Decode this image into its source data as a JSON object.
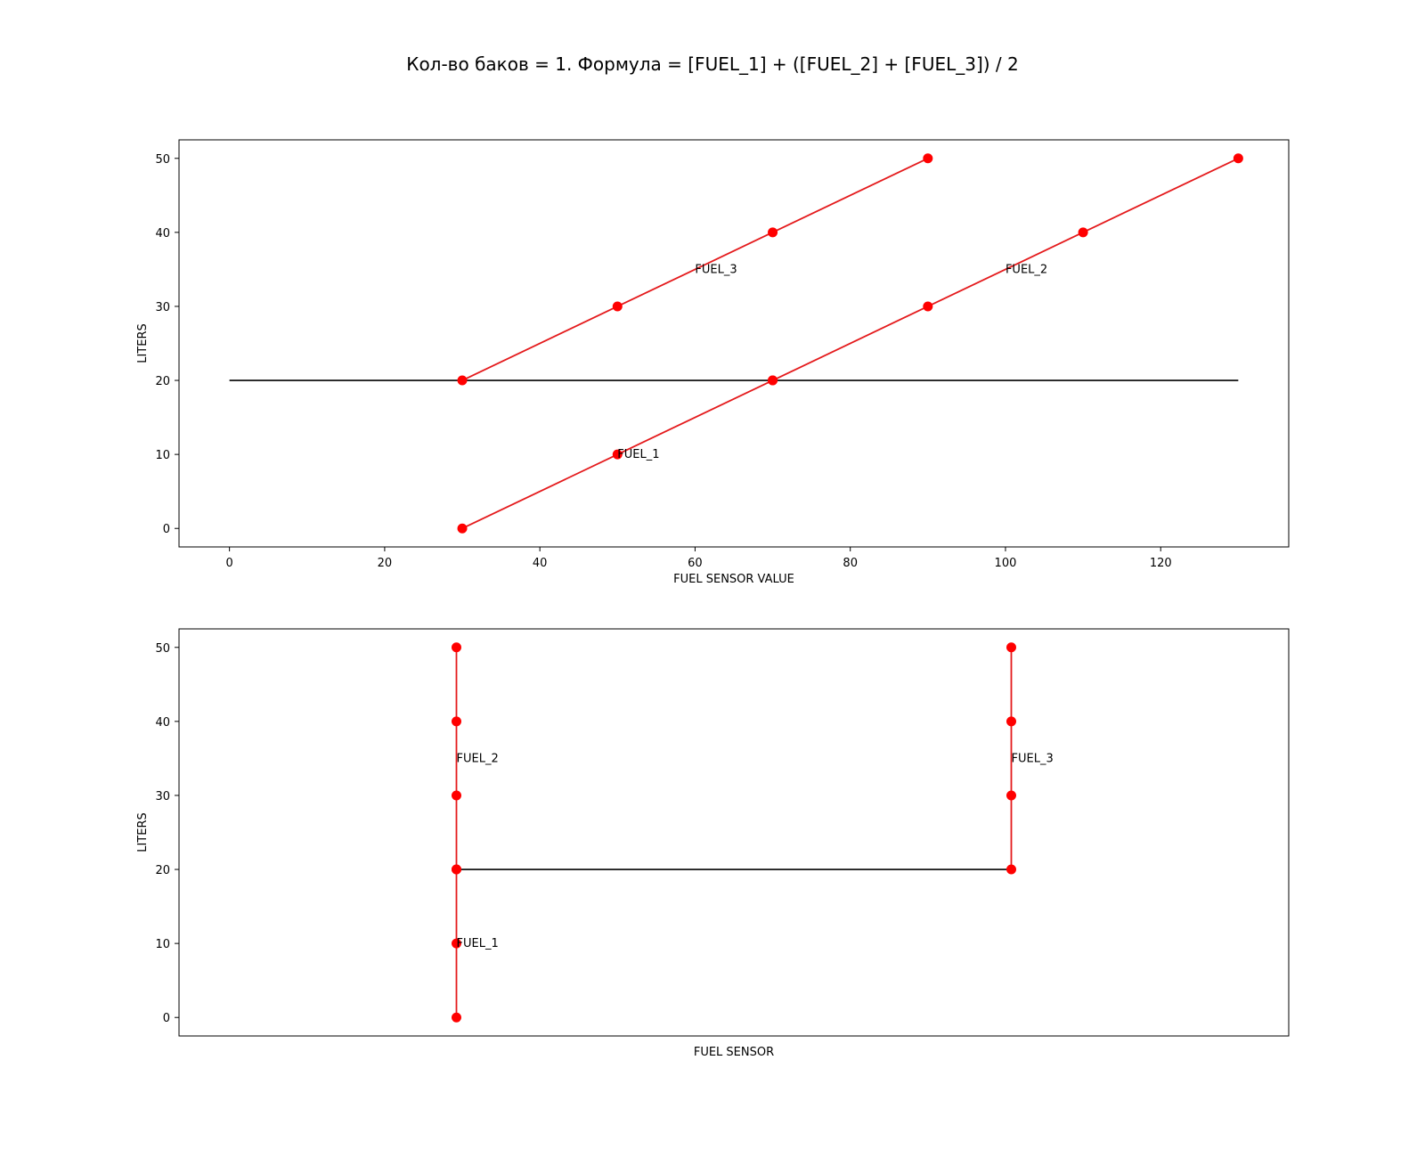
{
  "figure": {
    "suptitle": "Кол-во баков = 1. Формула = [FUEL_1] + ([FUEL_2] + [FUEL_3]) / 2"
  },
  "colors": {
    "series": "#e41a1c",
    "marker": "#ff0000",
    "reference": "#000000"
  },
  "chart_data": [
    {
      "type": "line",
      "xlabel": "FUEL SENSOR VALUE",
      "ylabel": "LITERS",
      "xlim": [
        -6.5,
        136.5
      ],
      "ylim": [
        -2.5,
        52.5
      ],
      "xticks": [
        0,
        20,
        40,
        60,
        80,
        100,
        120
      ],
      "yticks": [
        0,
        10,
        20,
        30,
        40,
        50
      ],
      "grid": false,
      "series": [
        {
          "x": [
            30,
            50,
            70
          ],
          "y": [
            0,
            10,
            20
          ],
          "markers": true
        },
        {
          "x": [
            70,
            90,
            110,
            130
          ],
          "y": [
            20,
            30,
            40,
            50
          ],
          "markers": true
        },
        {
          "x": [
            30,
            50,
            70,
            90
          ],
          "y": [
            20,
            30,
            40,
            50
          ],
          "markers": true
        },
        {
          "x": [
            0,
            130
          ],
          "y": [
            20,
            20
          ],
          "markers": false,
          "role": "reference"
        }
      ],
      "annotations": [
        {
          "text": "FUEL_1",
          "x": 50,
          "y": 10
        },
        {
          "text": "FUEL_2",
          "x": 100,
          "y": 35
        },
        {
          "text": "FUEL_3",
          "x": 60,
          "y": 35
        }
      ]
    },
    {
      "type": "line",
      "xlabel": "FUEL SENSOR",
      "ylabel": "LITERS",
      "xlim": [
        0,
        100
      ],
      "ylim": [
        -2.5,
        52.5
      ],
      "xticks": [],
      "yticks": [
        0,
        10,
        20,
        30,
        40,
        50
      ],
      "grid": false,
      "series": [
        {
          "x": [
            25,
            25,
            25
          ],
          "y": [
            0,
            10,
            20
          ],
          "markers": true
        },
        {
          "x": [
            25,
            25,
            25,
            25
          ],
          "y": [
            20,
            30,
            40,
            50
          ],
          "markers": true
        },
        {
          "x": [
            75,
            75,
            75,
            75
          ],
          "y": [
            20,
            30,
            40,
            50
          ],
          "markers": true
        },
        {
          "x": [
            25,
            75
          ],
          "y": [
            20,
            20
          ],
          "markers": false,
          "role": "reference"
        }
      ],
      "annotations": [
        {
          "text": "FUEL_1",
          "x": 25,
          "y": 10
        },
        {
          "text": "FUEL_2",
          "x": 25,
          "y": 35
        },
        {
          "text": "FUEL_3",
          "x": 75,
          "y": 35
        }
      ]
    }
  ]
}
